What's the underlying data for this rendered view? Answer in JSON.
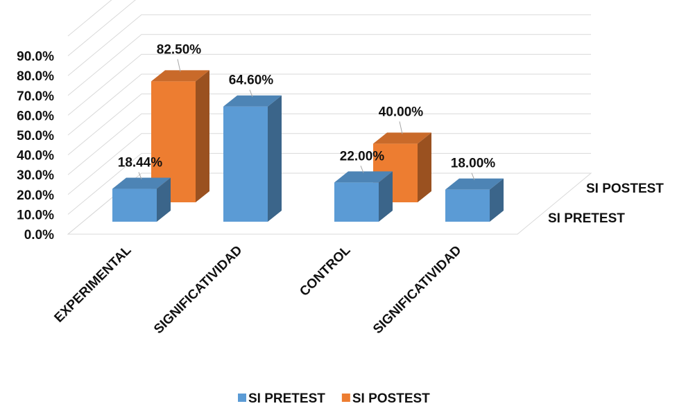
{
  "chart_data": {
    "type": "bar",
    "categories": [
      "EXPERIMENTAL",
      "SIGNIFICATIVIDAD",
      "CONTROL",
      "SIGNIFICATIVIDAD"
    ],
    "series": [
      {
        "name": "SI PRETEST",
        "values": [
          18.44,
          64.6,
          22.0,
          18.0
        ],
        "labels": [
          "18.44%",
          "64.60%",
          "22.00%",
          "18.00%"
        ],
        "color": "#5B9BD5"
      },
      {
        "name": "SI POSTEST",
        "values": [
          82.5,
          null,
          40.0,
          null
        ],
        "labels": [
          "82.50%",
          "",
          "40.00%",
          ""
        ],
        "color": "#ED7D31"
      }
    ],
    "y_ticks": [
      "0.0%",
      "10.0%",
      "20.0%",
      "30.0%",
      "40.0%",
      "50.0%",
      "60.0%",
      "70.0%",
      "80.0%",
      "90.0%"
    ],
    "ylim": [
      0,
      90
    ],
    "grid": true,
    "legend": "bottom",
    "depth_labels": [
      "SI PRETEST",
      "SI POSTEST"
    ]
  }
}
